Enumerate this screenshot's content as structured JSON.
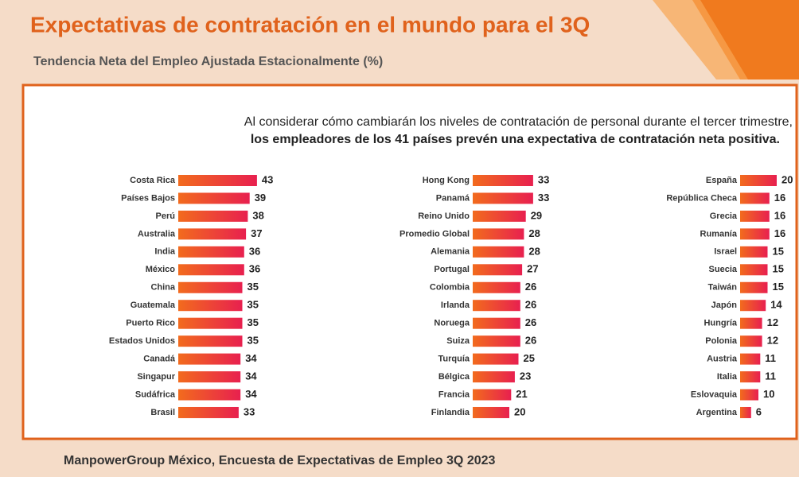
{
  "header": {
    "title": "Expectativas de contratación en el mundo para el 3Q",
    "subtitle": "Tendencia Neta del Empleo Ajustada Estacionalmente (%)"
  },
  "intro": [
    "Al considerar cómo cambiarán los niveles de contratación de personal durante el tercer trimestre,",
    "los empleadores de los 41 países prevén una expectativa de contratación neta positiva."
  ],
  "footer": "ManpowerGroup México, Encuesta de Expectativas de Empleo 3Q 2023",
  "chart_data": [
    {
      "type": "barh",
      "highlight": 5,
      "highlight_color": "#e8611a",
      "categories": [
        "Costa Rica",
        "Países Bajos",
        "Perú",
        "Australia",
        "India",
        "México",
        "China",
        "Guatemala",
        "Puerto Rico",
        "Estados Unidos",
        "Canadá",
        "Singapur",
        "Sudáfrica",
        "Brasil"
      ],
      "values": [
        43,
        39,
        38,
        37,
        36,
        36,
        35,
        35,
        35,
        35,
        34,
        34,
        34,
        33
      ]
    },
    {
      "type": "barh",
      "highlight": 3,
      "highlight_color": "#e8611a",
      "categories": [
        "Hong Kong",
        "Panamá",
        "Reino Unido",
        "Promedio Global",
        "Alemania",
        "Portugal",
        "Colombia",
        "Irlanda",
        "Noruega",
        "Suiza",
        "Turquía",
        "Bélgica",
        "Francia",
        "Finlandia"
      ],
      "values": [
        33,
        33,
        29,
        28,
        28,
        27,
        26,
        26,
        26,
        26,
        25,
        23,
        21,
        20
      ]
    },
    {
      "type": "barh",
      "categories": [
        "España",
        "República Checa",
        "Grecia",
        "Rumanía",
        "Israel",
        "Suecia",
        "Taiwán",
        "Japón",
        "Hungría",
        "Polonia",
        "Austria",
        "Italia",
        "Eslovaquia",
        "Argentina"
      ],
      "values": [
        20,
        16,
        16,
        16,
        15,
        15,
        15,
        14,
        12,
        12,
        11,
        11,
        10,
        6
      ]
    }
  ]
}
